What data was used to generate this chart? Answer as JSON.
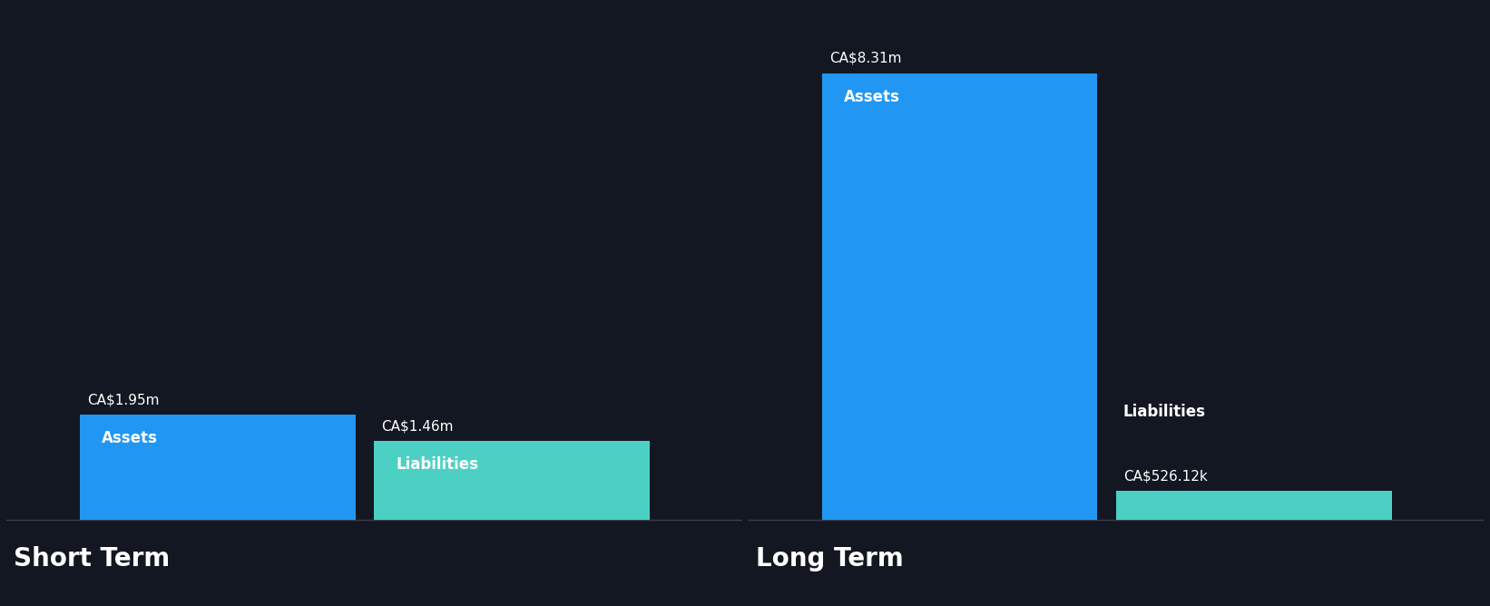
{
  "background_color": "#131722",
  "short_term": {
    "assets_value": 1.95,
    "liabilities_value": 1.46,
    "assets_label": "CA$1.95m",
    "liabilities_label": "CA$1.46m",
    "assets_color": "#2196F3",
    "liabilities_color": "#4DD0C4",
    "section_label": "Short Term"
  },
  "long_term": {
    "assets_value": 8.31,
    "liabilities_value": 0.52612,
    "assets_label": "CA$8.31m",
    "liabilities_label": "CA$526.12k",
    "assets_color": "#2196F3",
    "liabilities_color": "#4DD0C4",
    "section_label": "Long Term"
  },
  "bar_label_assets": "Assets",
  "bar_label_liabilities": "Liabilities",
  "text_color": "#ffffff",
  "axis_line_color": "#3a3f4b",
  "value_fontsize": 11,
  "section_label_fontsize": 20,
  "bar_label_fontsize": 12
}
